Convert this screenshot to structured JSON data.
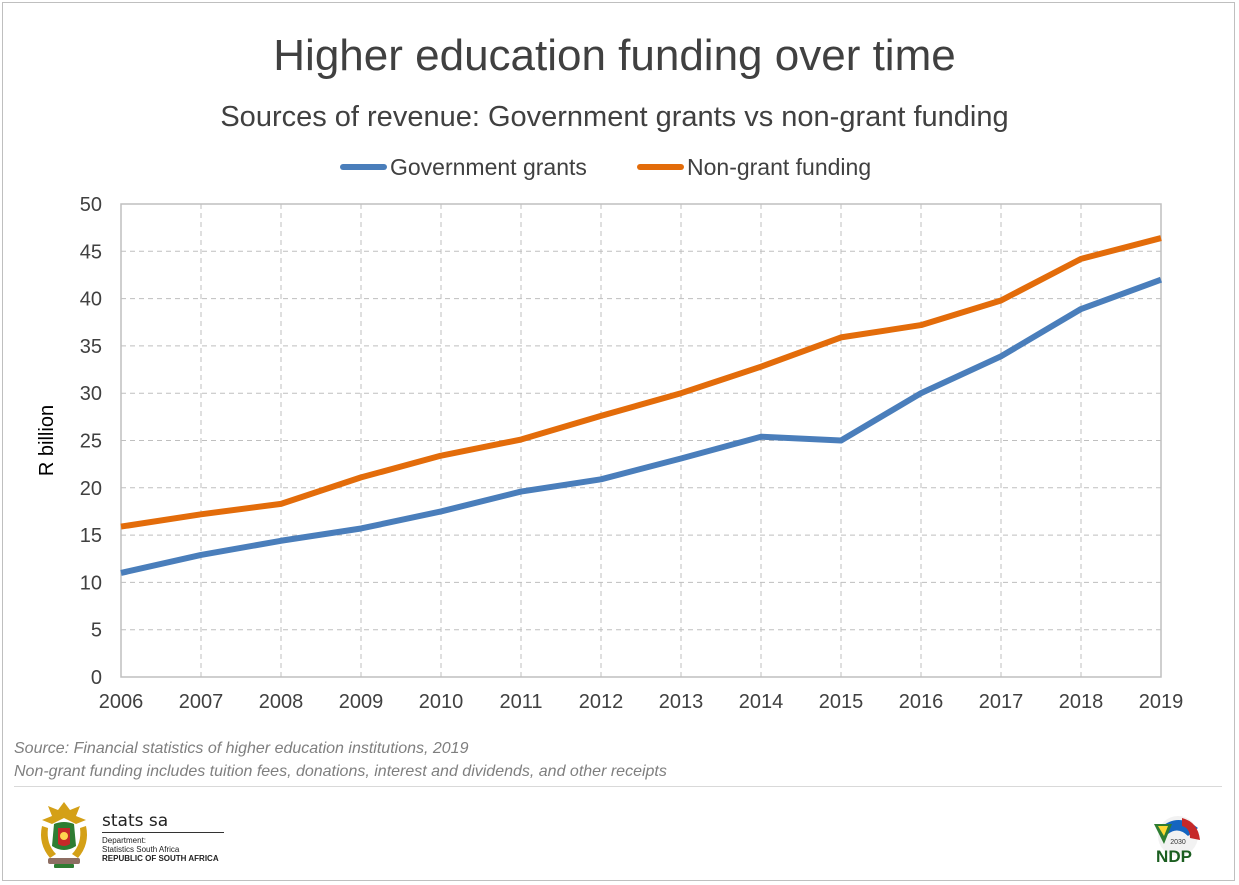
{
  "title": "Higher education funding over time",
  "subtitle": "Sources of revenue: Government grants vs non-grant funding",
  "chart_data": {
    "type": "line",
    "x": [
      2006,
      2007,
      2008,
      2009,
      2010,
      2011,
      2012,
      2013,
      2014,
      2015,
      2016,
      2017,
      2018,
      2019
    ],
    "series": [
      {
        "name": "Government grants",
        "color": "#4a7ebb",
        "values": [
          11.0,
          12.9,
          14.4,
          15.7,
          17.5,
          19.6,
          20.9,
          23.1,
          25.4,
          25.0,
          30.0,
          33.9,
          38.9,
          42.0
        ]
      },
      {
        "name": "Non-grant funding",
        "color": "#e36c0a",
        "values": [
          15.9,
          17.2,
          18.3,
          21.1,
          23.4,
          25.1,
          27.6,
          30.0,
          32.8,
          35.9,
          37.2,
          39.8,
          44.2,
          46.4
        ]
      }
    ],
    "xlabel": "",
    "ylabel": "R billion",
    "ylim": [
      0,
      50
    ],
    "yticks": [
      0,
      5,
      10,
      15,
      20,
      25,
      30,
      35,
      40,
      45,
      50
    ],
    "grid": true,
    "legend_position": "top"
  },
  "footnotes": [
    "Source: Financial statistics of higher education institutions, 2019",
    "Non-grant funding includes tuition fees, donations, interest and dividends, and other receipts"
  ],
  "footer": {
    "org_name": "stats sa",
    "dept_line1": "Department:",
    "dept_line2": "Statistics South Africa",
    "dept_line3": "REPUBLIC OF SOUTH AFRICA",
    "coat_of_arms_icon": "coat-of-arms-icon",
    "ndp_logo_text": "NDP",
    "ndp_year": "2030"
  }
}
